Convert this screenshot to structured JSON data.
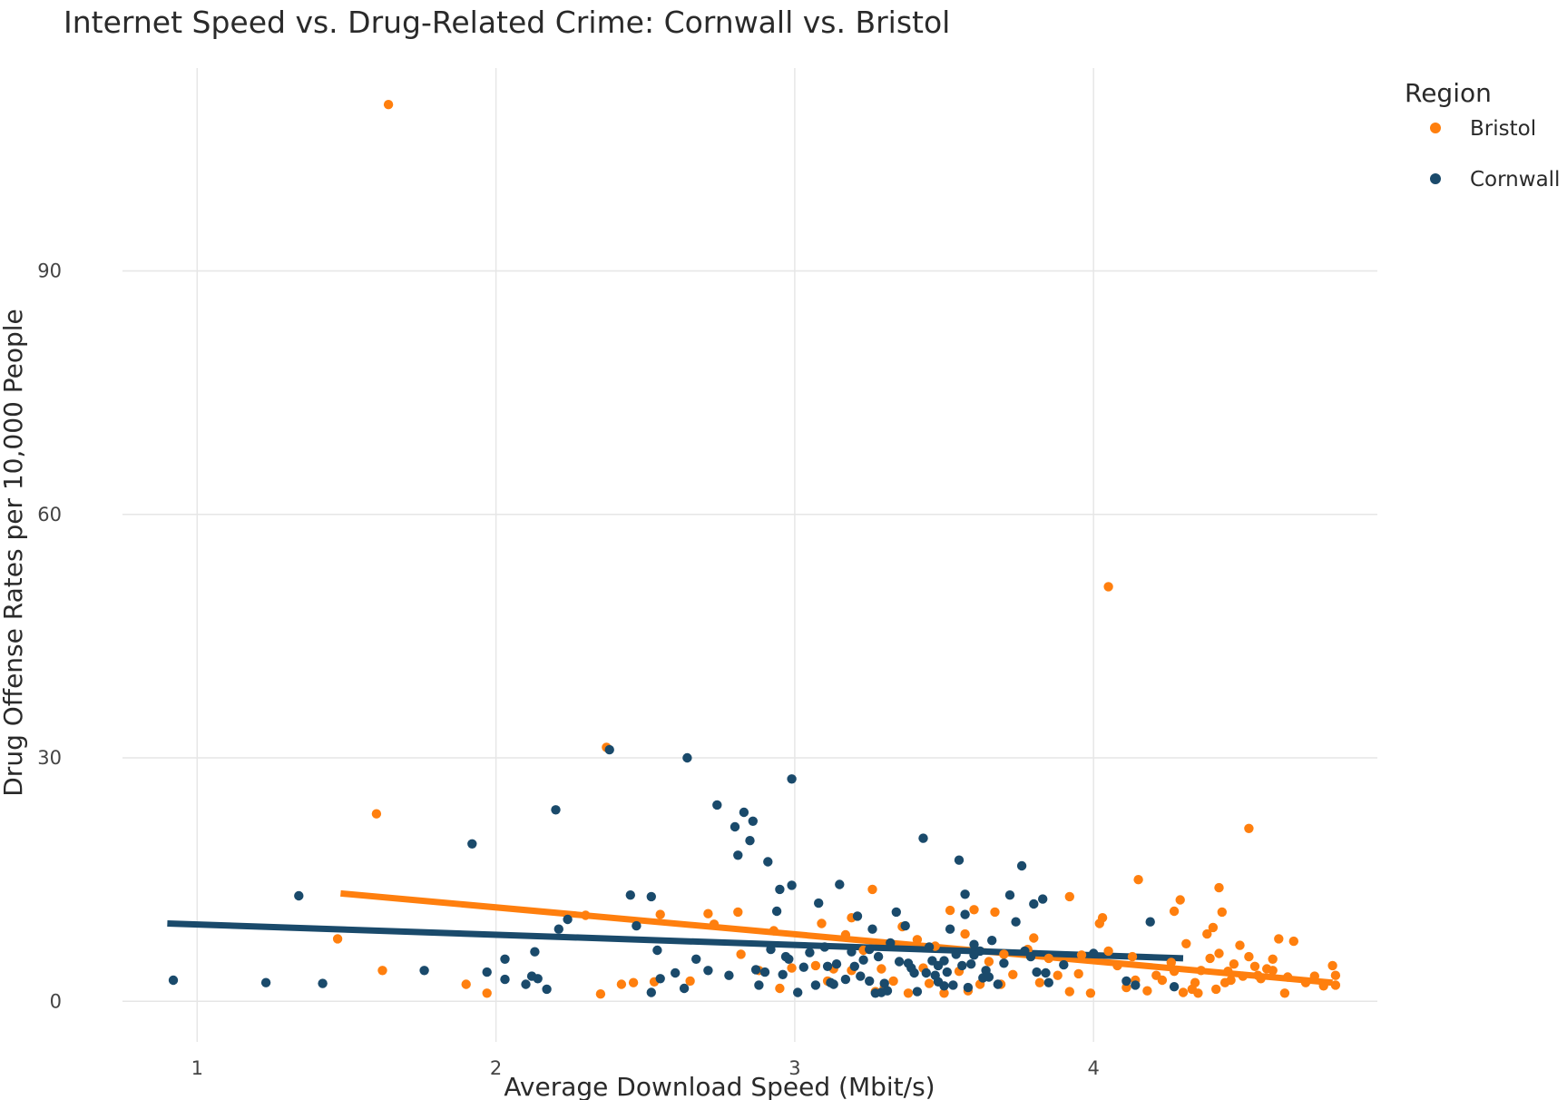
{
  "chart_data": {
    "type": "scatter",
    "title": "Internet Speed vs. Drug-Related Crime: Cornwall vs. Bristol",
    "xlabel": "Average Download Speed (Mbit/s)",
    "ylabel": "Drug Offense Rates per 10,000 People",
    "xlim": [
      0.75,
      4.95
    ],
    "ylim": [
      -5,
      115
    ],
    "xticks": [
      1,
      2,
      3,
      4
    ],
    "yticks": [
      0,
      30,
      60,
      90
    ],
    "grid": true,
    "legend_title": "Region",
    "legend_position": "top-right",
    "series": [
      {
        "name": "Bristol",
        "color": "#ff7f0e",
        "trend": {
          "x": [
            1.48,
            4.8
          ],
          "y": [
            13.3,
            2.3
          ]
        },
        "points": [
          [
            1.64,
            110.5
          ],
          [
            1.6,
            23.1
          ],
          [
            1.47,
            7.7
          ],
          [
            1.62,
            3.8
          ],
          [
            1.9,
            2.1
          ],
          [
            1.97,
            1.0
          ],
          [
            2.3,
            10.6
          ],
          [
            2.37,
            31.3
          ],
          [
            2.35,
            0.9
          ],
          [
            2.42,
            2.1
          ],
          [
            2.46,
            2.3
          ],
          [
            2.55,
            10.7
          ],
          [
            2.53,
            2.4
          ],
          [
            2.65,
            2.5
          ],
          [
            2.71,
            10.8
          ],
          [
            2.73,
            9.5
          ],
          [
            2.81,
            11.0
          ],
          [
            2.88,
            3.8
          ],
          [
            2.95,
            1.6
          ],
          [
            2.99,
            4.1
          ],
          [
            2.93,
            8.7
          ],
          [
            3.09,
            9.6
          ],
          [
            3.13,
            4.0
          ],
          [
            3.17,
            8.2
          ],
          [
            3.19,
            10.3
          ],
          [
            3.23,
            6.3
          ],
          [
            3.26,
            13.8
          ],
          [
            3.29,
            4.0
          ],
          [
            3.27,
            1.2
          ],
          [
            3.33,
            2.5
          ],
          [
            3.36,
            9.2
          ],
          [
            3.38,
            1.0
          ],
          [
            3.41,
            7.6
          ],
          [
            3.43,
            4.1
          ],
          [
            3.45,
            2.2
          ],
          [
            3.47,
            6.8
          ],
          [
            3.5,
            1.0
          ],
          [
            3.52,
            11.2
          ],
          [
            3.55,
            3.7
          ],
          [
            3.57,
            8.3
          ],
          [
            3.6,
            11.3
          ],
          [
            3.62,
            2.1
          ],
          [
            3.65,
            4.9
          ],
          [
            3.67,
            11.0
          ],
          [
            3.7,
            5.8
          ],
          [
            3.73,
            3.3
          ],
          [
            3.78,
            6.4
          ],
          [
            3.8,
            7.8
          ],
          [
            3.82,
            2.3
          ],
          [
            3.85,
            5.3
          ],
          [
            3.88,
            3.2
          ],
          [
            3.92,
            1.2
          ],
          [
            3.92,
            12.9
          ],
          [
            3.96,
            5.7
          ],
          [
            3.99,
            1.0
          ],
          [
            4.02,
            9.6
          ],
          [
            4.03,
            10.3
          ],
          [
            4.05,
            6.2
          ],
          [
            4.05,
            51.1
          ],
          [
            4.08,
            4.4
          ],
          [
            4.11,
            1.7
          ],
          [
            4.14,
            2.6
          ],
          [
            4.15,
            15.0
          ],
          [
            4.18,
            1.3
          ],
          [
            4.21,
            3.2
          ],
          [
            4.23,
            2.6
          ],
          [
            4.26,
            4.8
          ],
          [
            4.27,
            11.1
          ],
          [
            4.29,
            12.5
          ],
          [
            4.31,
            7.1
          ],
          [
            4.33,
            1.5
          ],
          [
            4.35,
            1.0
          ],
          [
            4.36,
            3.8
          ],
          [
            4.38,
            8.3
          ],
          [
            4.39,
            5.3
          ],
          [
            4.4,
            9.1
          ],
          [
            4.42,
            14.0
          ],
          [
            4.42,
            5.9
          ],
          [
            4.43,
            11.0
          ],
          [
            4.44,
            2.3
          ],
          [
            4.45,
            3.7
          ],
          [
            4.47,
            4.6
          ],
          [
            4.49,
            6.9
          ],
          [
            4.5,
            3.1
          ],
          [
            4.52,
            21.3
          ],
          [
            4.52,
            5.5
          ],
          [
            4.54,
            4.3
          ],
          [
            4.56,
            2.8
          ],
          [
            4.58,
            4.0
          ],
          [
            4.6,
            5.2
          ],
          [
            4.62,
            7.7
          ],
          [
            4.64,
            1.0
          ],
          [
            4.65,
            3.0
          ],
          [
            4.67,
            7.4
          ],
          [
            4.71,
            2.3
          ],
          [
            4.74,
            3.1
          ],
          [
            4.77,
            1.9
          ],
          [
            4.8,
            4.4
          ],
          [
            4.81,
            3.2
          ],
          [
            4.81,
            2.0
          ],
          [
            4.34,
            2.3
          ],
          [
            4.3,
            1.1
          ],
          [
            4.41,
            1.5
          ],
          [
            4.55,
            3.2
          ],
          [
            3.58,
            1.3
          ],
          [
            3.3,
            1.7
          ],
          [
            3.19,
            3.8
          ],
          [
            3.07,
            4.4
          ],
          [
            2.82,
            5.8
          ],
          [
            3.11,
            2.5
          ],
          [
            4.13,
            5.5
          ],
          [
            3.95,
            3.4
          ],
          [
            3.69,
            2.1
          ],
          [
            4.27,
            3.7
          ],
          [
            4.46,
            2.6
          ],
          [
            4.6,
            3.8
          ]
        ]
      },
      {
        "name": "Cornwall",
        "color": "#1a4a6b",
        "trend": {
          "x": [
            0.9,
            4.3
          ],
          "y": [
            9.6,
            5.3
          ]
        },
        "points": [
          [
            0.92,
            2.6
          ],
          [
            1.23,
            2.3
          ],
          [
            1.34,
            13.0
          ],
          [
            1.42,
            2.2
          ],
          [
            1.76,
            3.8
          ],
          [
            1.92,
            19.4
          ],
          [
            1.97,
            3.6
          ],
          [
            2.03,
            5.2
          ],
          [
            2.03,
            2.7
          ],
          [
            2.1,
            2.1
          ],
          [
            2.12,
            3.1
          ],
          [
            2.13,
            6.1
          ],
          [
            2.14,
            2.8
          ],
          [
            2.17,
            1.5
          ],
          [
            2.2,
            23.6
          ],
          [
            2.21,
            8.9
          ],
          [
            2.24,
            10.1
          ],
          [
            2.38,
            31.0
          ],
          [
            2.45,
            13.1
          ],
          [
            2.47,
            9.3
          ],
          [
            2.52,
            12.9
          ],
          [
            2.52,
            1.1
          ],
          [
            2.54,
            6.3
          ],
          [
            2.55,
            2.8
          ],
          [
            2.6,
            3.5
          ],
          [
            2.63,
            1.6
          ],
          [
            2.64,
            30.0
          ],
          [
            2.67,
            5.2
          ],
          [
            2.71,
            3.8
          ],
          [
            2.74,
            24.2
          ],
          [
            2.78,
            3.2
          ],
          [
            2.8,
            21.5
          ],
          [
            2.81,
            18.0
          ],
          [
            2.83,
            23.3
          ],
          [
            2.85,
            19.8
          ],
          [
            2.86,
            22.2
          ],
          [
            2.87,
            3.9
          ],
          [
            2.88,
            2.0
          ],
          [
            2.9,
            3.6
          ],
          [
            2.91,
            17.2
          ],
          [
            2.92,
            6.4
          ],
          [
            2.94,
            11.1
          ],
          [
            2.95,
            13.8
          ],
          [
            2.97,
            5.5
          ],
          [
            2.99,
            14.3
          ],
          [
            2.99,
            27.4
          ],
          [
            3.01,
            1.1
          ],
          [
            3.03,
            4.2
          ],
          [
            3.07,
            2.0
          ],
          [
            3.08,
            12.1
          ],
          [
            3.1,
            6.7
          ],
          [
            3.11,
            4.3
          ],
          [
            3.13,
            2.1
          ],
          [
            3.15,
            14.4
          ],
          [
            3.17,
            2.7
          ],
          [
            3.19,
            6.1
          ],
          [
            3.2,
            4.3
          ],
          [
            3.21,
            10.5
          ],
          [
            3.22,
            3.1
          ],
          [
            3.23,
            5.1
          ],
          [
            3.25,
            6.4
          ],
          [
            3.26,
            8.9
          ],
          [
            3.27,
            1.0
          ],
          [
            3.28,
            5.5
          ],
          [
            3.3,
            2.2
          ],
          [
            3.31,
            1.3
          ],
          [
            3.34,
            11.0
          ],
          [
            3.35,
            4.9
          ],
          [
            3.37,
            9.3
          ],
          [
            3.39,
            4.1
          ],
          [
            3.41,
            1.2
          ],
          [
            3.43,
            20.1
          ],
          [
            3.44,
            3.5
          ],
          [
            3.45,
            6.7
          ],
          [
            3.46,
            5.0
          ],
          [
            3.48,
            2.4
          ],
          [
            3.5,
            1.9
          ],
          [
            3.51,
            3.6
          ],
          [
            3.52,
            8.9
          ],
          [
            3.54,
            5.8
          ],
          [
            3.55,
            17.4
          ],
          [
            3.56,
            4.4
          ],
          [
            3.57,
            13.2
          ],
          [
            3.57,
            10.7
          ],
          [
            3.58,
            1.7
          ],
          [
            3.59,
            4.6
          ],
          [
            3.6,
            7.0
          ],
          [
            3.62,
            6.2
          ],
          [
            3.63,
            2.9
          ],
          [
            3.64,
            3.8
          ],
          [
            3.66,
            7.5
          ],
          [
            3.68,
            2.1
          ],
          [
            3.7,
            4.7
          ],
          [
            3.72,
            13.1
          ],
          [
            3.74,
            9.8
          ],
          [
            3.76,
            16.7
          ],
          [
            3.77,
            6.2
          ],
          [
            3.79,
            5.5
          ],
          [
            3.8,
            12.0
          ],
          [
            3.81,
            3.6
          ],
          [
            3.83,
            12.6
          ],
          [
            3.84,
            3.5
          ],
          [
            3.85,
            2.3
          ],
          [
            3.9,
            4.5
          ],
          [
            4.0,
            5.9
          ],
          [
            4.11,
            2.5
          ],
          [
            4.14,
            2.0
          ],
          [
            4.19,
            9.8
          ],
          [
            4.27,
            1.8
          ],
          [
            3.47,
            3.2
          ],
          [
            3.25,
            2.5
          ],
          [
            3.32,
            7.2
          ],
          [
            3.05,
            6.0
          ],
          [
            3.14,
            4.6
          ],
          [
            3.5,
            5.0
          ],
          [
            3.6,
            5.7
          ],
          [
            3.4,
            3.5
          ],
          [
            3.53,
            2.0
          ],
          [
            3.65,
            3.0
          ],
          [
            3.29,
            1.1
          ],
          [
            3.12,
            2.3
          ],
          [
            2.98,
            5.2
          ],
          [
            2.96,
            3.3
          ],
          [
            3.38,
            4.7
          ],
          [
            3.48,
            4.4
          ]
        ]
      }
    ]
  }
}
